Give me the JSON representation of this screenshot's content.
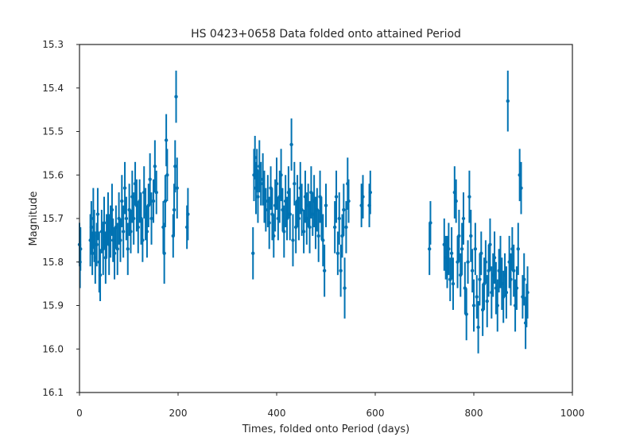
{
  "chart_data": {
    "type": "scatter",
    "title": "HS 0423+0658 Data folded onto attained Period",
    "xlabel": "Times, folded onto Period (days)",
    "ylabel": "Magnitude",
    "xlim": [
      0,
      1000
    ],
    "ylim": [
      15.3,
      16.1
    ],
    "y_inverted": true,
    "grid": false,
    "x_ticks": [
      0,
      200,
      400,
      600,
      800,
      1000
    ],
    "y_ticks": [
      15.3,
      15.4,
      15.5,
      15.6,
      15.7,
      15.8,
      15.9,
      16.0,
      16.1
    ],
    "x_tick_labels": [
      "0",
      "200",
      "400",
      "600",
      "800",
      "1000"
    ],
    "y_tick_labels": [
      "15.3",
      "15.4",
      "15.5",
      "15.6",
      "15.7",
      "15.8",
      "15.9",
      "16.0",
      "16.1"
    ],
    "color": "#0072b2",
    "series": [
      {
        "points": [
          {
            "x": 0,
            "y": 15.76,
            "err": 0.05
          },
          {
            "x": 1,
            "y": 15.8,
            "err": 0.06
          },
          {
            "x": 2,
            "y": 15.77,
            "err": 0.05
          },
          {
            "x": 22,
            "y": 15.75,
            "err": 0.06
          },
          {
            "x": 24,
            "y": 15.72,
            "err": 0.06
          },
          {
            "x": 26,
            "y": 15.78,
            "err": 0.05
          },
          {
            "x": 28,
            "y": 15.7,
            "err": 0.07
          },
          {
            "x": 30,
            "y": 15.74,
            "err": 0.06
          },
          {
            "x": 32,
            "y": 15.79,
            "err": 0.06
          },
          {
            "x": 35,
            "y": 15.76,
            "err": 0.05
          },
          {
            "x": 37,
            "y": 15.69,
            "err": 0.06
          },
          {
            "x": 40,
            "y": 15.8,
            "err": 0.07
          },
          {
            "x": 42,
            "y": 15.83,
            "err": 0.06
          },
          {
            "x": 45,
            "y": 15.73,
            "err": 0.05
          },
          {
            "x": 48,
            "y": 15.77,
            "err": 0.06
          },
          {
            "x": 50,
            "y": 15.71,
            "err": 0.06
          },
          {
            "x": 53,
            "y": 15.79,
            "err": 0.06
          },
          {
            "x": 55,
            "y": 15.74,
            "err": 0.05
          },
          {
            "x": 58,
            "y": 15.7,
            "err": 0.06
          },
          {
            "x": 60,
            "y": 15.76,
            "err": 0.07
          },
          {
            "x": 63,
            "y": 15.73,
            "err": 0.06
          },
          {
            "x": 66,
            "y": 15.68,
            "err": 0.06
          },
          {
            "x": 68,
            "y": 15.75,
            "err": 0.05
          },
          {
            "x": 71,
            "y": 15.78,
            "err": 0.06
          },
          {
            "x": 74,
            "y": 15.72,
            "err": 0.05
          },
          {
            "x": 77,
            "y": 15.77,
            "err": 0.06
          },
          {
            "x": 80,
            "y": 15.7,
            "err": 0.06
          },
          {
            "x": 83,
            "y": 15.75,
            "err": 0.05
          },
          {
            "x": 86,
            "y": 15.66,
            "err": 0.06
          },
          {
            "x": 89,
            "y": 15.73,
            "err": 0.06
          },
          {
            "x": 92,
            "y": 15.63,
            "err": 0.06
          },
          {
            "x": 95,
            "y": 15.7,
            "err": 0.05
          },
          {
            "x": 98,
            "y": 15.77,
            "err": 0.06
          },
          {
            "x": 101,
            "y": 15.68,
            "err": 0.06
          },
          {
            "x": 104,
            "y": 15.73,
            "err": 0.05
          },
          {
            "x": 107,
            "y": 15.65,
            "err": 0.06
          },
          {
            "x": 110,
            "y": 15.7,
            "err": 0.06
          },
          {
            "x": 113,
            "y": 15.62,
            "err": 0.05
          },
          {
            "x": 116,
            "y": 15.67,
            "err": 0.06
          },
          {
            "x": 119,
            "y": 15.72,
            "err": 0.06
          },
          {
            "x": 122,
            "y": 15.66,
            "err": 0.05
          },
          {
            "x": 125,
            "y": 15.7,
            "err": 0.06
          },
          {
            "x": 128,
            "y": 15.75,
            "err": 0.05
          },
          {
            "x": 131,
            "y": 15.64,
            "err": 0.06
          },
          {
            "x": 134,
            "y": 15.69,
            "err": 0.06
          },
          {
            "x": 137,
            "y": 15.73,
            "err": 0.06
          },
          {
            "x": 140,
            "y": 15.67,
            "err": 0.05
          },
          {
            "x": 143,
            "y": 15.61,
            "err": 0.06
          },
          {
            "x": 146,
            "y": 15.7,
            "err": 0.06
          },
          {
            "x": 150,
            "y": 15.66,
            "err": 0.05
          },
          {
            "x": 153,
            "y": 15.58,
            "err": 0.06
          },
          {
            "x": 156,
            "y": 15.64,
            "err": 0.05
          },
          {
            "x": 170,
            "y": 15.72,
            "err": 0.06
          },
          {
            "x": 172,
            "y": 15.78,
            "err": 0.07
          },
          {
            "x": 174,
            "y": 15.66,
            "err": 0.06
          },
          {
            "x": 176,
            "y": 15.52,
            "err": 0.06
          },
          {
            "x": 178,
            "y": 15.6,
            "err": 0.06
          },
          {
            "x": 190,
            "y": 15.74,
            "err": 0.05
          },
          {
            "x": 192,
            "y": 15.68,
            "err": 0.06
          },
          {
            "x": 194,
            "y": 15.58,
            "err": 0.06
          },
          {
            "x": 196,
            "y": 15.42,
            "err": 0.06
          },
          {
            "x": 198,
            "y": 15.63,
            "err": 0.07
          },
          {
            "x": 218,
            "y": 15.72,
            "err": 0.05
          },
          {
            "x": 220,
            "y": 15.69,
            "err": 0.06
          },
          {
            "x": 352,
            "y": 15.78,
            "err": 0.06
          },
          {
            "x": 354,
            "y": 15.6,
            "err": 0.06
          },
          {
            "x": 356,
            "y": 15.56,
            "err": 0.05
          },
          {
            "x": 358,
            "y": 15.63,
            "err": 0.06
          },
          {
            "x": 360,
            "y": 15.59,
            "err": 0.05
          },
          {
            "x": 362,
            "y": 15.65,
            "err": 0.06
          },
          {
            "x": 365,
            "y": 15.58,
            "err": 0.06
          },
          {
            "x": 368,
            "y": 15.62,
            "err": 0.05
          },
          {
            "x": 372,
            "y": 15.61,
            "err": 0.06
          },
          {
            "x": 375,
            "y": 15.65,
            "err": 0.06
          },
          {
            "x": 378,
            "y": 15.68,
            "err": 0.05
          },
          {
            "x": 382,
            "y": 15.66,
            "err": 0.06
          },
          {
            "x": 385,
            "y": 15.71,
            "err": 0.06
          },
          {
            "x": 388,
            "y": 15.63,
            "err": 0.05
          },
          {
            "x": 391,
            "y": 15.69,
            "err": 0.06
          },
          {
            "x": 394,
            "y": 15.74,
            "err": 0.05
          },
          {
            "x": 397,
            "y": 15.67,
            "err": 0.06
          },
          {
            "x": 400,
            "y": 15.62,
            "err": 0.06
          },
          {
            "x": 403,
            "y": 15.7,
            "err": 0.05
          },
          {
            "x": 406,
            "y": 15.65,
            "err": 0.06
          },
          {
            "x": 409,
            "y": 15.6,
            "err": 0.06
          },
          {
            "x": 412,
            "y": 15.68,
            "err": 0.05
          },
          {
            "x": 415,
            "y": 15.73,
            "err": 0.06
          },
          {
            "x": 418,
            "y": 15.66,
            "err": 0.06
          },
          {
            "x": 421,
            "y": 15.7,
            "err": 0.05
          },
          {
            "x": 424,
            "y": 15.64,
            "err": 0.06
          },
          {
            "x": 427,
            "y": 15.69,
            "err": 0.06
          },
          {
            "x": 430,
            "y": 15.53,
            "err": 0.06
          },
          {
            "x": 433,
            "y": 15.75,
            "err": 0.06
          },
          {
            "x": 436,
            "y": 15.62,
            "err": 0.05
          },
          {
            "x": 439,
            "y": 15.72,
            "err": 0.06
          },
          {
            "x": 442,
            "y": 15.66,
            "err": 0.06
          },
          {
            "x": 445,
            "y": 15.7,
            "err": 0.05
          },
          {
            "x": 448,
            "y": 15.63,
            "err": 0.06
          },
          {
            "x": 451,
            "y": 15.68,
            "err": 0.06
          },
          {
            "x": 455,
            "y": 15.73,
            "err": 0.05
          },
          {
            "x": 458,
            "y": 15.65,
            "err": 0.06
          },
          {
            "x": 461,
            "y": 15.7,
            "err": 0.06
          },
          {
            "x": 464,
            "y": 15.67,
            "err": 0.05
          },
          {
            "x": 467,
            "y": 15.72,
            "err": 0.06
          },
          {
            "x": 470,
            "y": 15.64,
            "err": 0.06
          },
          {
            "x": 473,
            "y": 15.69,
            "err": 0.05
          },
          {
            "x": 476,
            "y": 15.66,
            "err": 0.06
          },
          {
            "x": 479,
            "y": 15.71,
            "err": 0.06
          },
          {
            "x": 482,
            "y": 15.68,
            "err": 0.05
          },
          {
            "x": 485,
            "y": 15.74,
            "err": 0.06
          },
          {
            "x": 488,
            "y": 15.65,
            "err": 0.06
          },
          {
            "x": 491,
            "y": 15.7,
            "err": 0.05
          },
          {
            "x": 494,
            "y": 15.75,
            "err": 0.06
          },
          {
            "x": 497,
            "y": 15.82,
            "err": 0.06
          },
          {
            "x": 500,
            "y": 15.67,
            "err": 0.05
          },
          {
            "x": 518,
            "y": 15.72,
            "err": 0.06
          },
          {
            "x": 521,
            "y": 15.65,
            "err": 0.06
          },
          {
            "x": 524,
            "y": 15.78,
            "err": 0.05
          },
          {
            "x": 527,
            "y": 15.7,
            "err": 0.06
          },
          {
            "x": 530,
            "y": 15.82,
            "err": 0.06
          },
          {
            "x": 533,
            "y": 15.74,
            "err": 0.05
          },
          {
            "x": 536,
            "y": 15.68,
            "err": 0.06
          },
          {
            "x": 538,
            "y": 15.86,
            "err": 0.07
          },
          {
            "x": 541,
            "y": 15.72,
            "err": 0.06
          },
          {
            "x": 544,
            "y": 15.62,
            "err": 0.06
          },
          {
            "x": 546,
            "y": 15.66,
            "err": 0.05
          },
          {
            "x": 572,
            "y": 15.67,
            "err": 0.05
          },
          {
            "x": 575,
            "y": 15.65,
            "err": 0.05
          },
          {
            "x": 588,
            "y": 15.67,
            "err": 0.05
          },
          {
            "x": 590,
            "y": 15.64,
            "err": 0.05
          },
          {
            "x": 710,
            "y": 15.77,
            "err": 0.06
          },
          {
            "x": 712,
            "y": 15.71,
            "err": 0.05
          },
          {
            "x": 740,
            "y": 15.76,
            "err": 0.06
          },
          {
            "x": 743,
            "y": 15.79,
            "err": 0.05
          },
          {
            "x": 746,
            "y": 15.8,
            "err": 0.06
          },
          {
            "x": 749,
            "y": 15.77,
            "err": 0.06
          },
          {
            "x": 752,
            "y": 15.84,
            "err": 0.05
          },
          {
            "x": 755,
            "y": 15.78,
            "err": 0.06
          },
          {
            "x": 758,
            "y": 15.85,
            "err": 0.06
          },
          {
            "x": 761,
            "y": 15.64,
            "err": 0.06
          },
          {
            "x": 764,
            "y": 15.66,
            "err": 0.05
          },
          {
            "x": 767,
            "y": 15.8,
            "err": 0.06
          },
          {
            "x": 770,
            "y": 15.74,
            "err": 0.06
          },
          {
            "x": 773,
            "y": 15.83,
            "err": 0.05
          },
          {
            "x": 776,
            "y": 15.77,
            "err": 0.06
          },
          {
            "x": 779,
            "y": 15.7,
            "err": 0.06
          },
          {
            "x": 782,
            "y": 15.86,
            "err": 0.06
          },
          {
            "x": 785,
            "y": 15.92,
            "err": 0.06
          },
          {
            "x": 788,
            "y": 15.8,
            "err": 0.05
          },
          {
            "x": 791,
            "y": 15.65,
            "err": 0.06
          },
          {
            "x": 794,
            "y": 15.74,
            "err": 0.06
          },
          {
            "x": 797,
            "y": 15.82,
            "err": 0.05
          },
          {
            "x": 800,
            "y": 15.9,
            "err": 0.06
          },
          {
            "x": 803,
            "y": 15.77,
            "err": 0.06
          },
          {
            "x": 806,
            "y": 15.88,
            "err": 0.05
          },
          {
            "x": 809,
            "y": 15.95,
            "err": 0.06
          },
          {
            "x": 812,
            "y": 15.84,
            "err": 0.06
          },
          {
            "x": 815,
            "y": 15.78,
            "err": 0.05
          },
          {
            "x": 818,
            "y": 15.91,
            "err": 0.06
          },
          {
            "x": 821,
            "y": 15.85,
            "err": 0.06
          },
          {
            "x": 824,
            "y": 15.8,
            "err": 0.05
          },
          {
            "x": 827,
            "y": 15.89,
            "err": 0.06
          },
          {
            "x": 830,
            "y": 15.82,
            "err": 0.06
          },
          {
            "x": 833,
            "y": 15.76,
            "err": 0.06
          },
          {
            "x": 836,
            "y": 15.87,
            "err": 0.06
          },
          {
            "x": 839,
            "y": 15.83,
            "err": 0.05
          },
          {
            "x": 842,
            "y": 15.79,
            "err": 0.06
          },
          {
            "x": 845,
            "y": 15.86,
            "err": 0.06
          },
          {
            "x": 848,
            "y": 15.9,
            "err": 0.06
          },
          {
            "x": 851,
            "y": 15.82,
            "err": 0.05
          },
          {
            "x": 854,
            "y": 15.8,
            "err": 0.06
          },
          {
            "x": 857,
            "y": 15.85,
            "err": 0.06
          },
          {
            "x": 860,
            "y": 15.88,
            "err": 0.06
          },
          {
            "x": 863,
            "y": 15.83,
            "err": 0.05
          },
          {
            "x": 866,
            "y": 15.87,
            "err": 0.06
          },
          {
            "x": 869,
            "y": 15.43,
            "err": 0.07
          },
          {
            "x": 872,
            "y": 15.8,
            "err": 0.06
          },
          {
            "x": 875,
            "y": 15.84,
            "err": 0.06
          },
          {
            "x": 878,
            "y": 15.77,
            "err": 0.05
          },
          {
            "x": 881,
            "y": 15.82,
            "err": 0.06
          },
          {
            "x": 884,
            "y": 15.9,
            "err": 0.06
          },
          {
            "x": 887,
            "y": 15.86,
            "err": 0.05
          },
          {
            "x": 890,
            "y": 15.77,
            "err": 0.06
          },
          {
            "x": 893,
            "y": 15.6,
            "err": 0.06
          },
          {
            "x": 896,
            "y": 15.63,
            "err": 0.06
          },
          {
            "x": 899,
            "y": 15.88,
            "err": 0.05
          },
          {
            "x": 902,
            "y": 15.84,
            "err": 0.06
          },
          {
            "x": 905,
            "y": 15.94,
            "err": 0.06
          },
          {
            "x": 907,
            "y": 15.9,
            "err": 0.05
          },
          {
            "x": 909,
            "y": 15.87,
            "err": 0.06
          }
        ]
      }
    ]
  }
}
